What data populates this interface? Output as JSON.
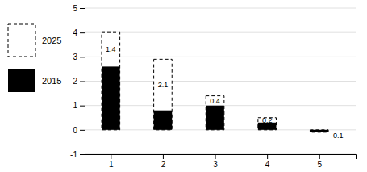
{
  "chart_data": {
    "type": "bar",
    "x": [
      1,
      2,
      3,
      4,
      5
    ],
    "series": [
      {
        "name": "2025",
        "color": "#000000",
        "line_style": "dashed",
        "values": [
          4.0,
          2.9,
          1.4,
          0.5,
          -0.1
        ]
      },
      {
        "name": "2015",
        "color": "#000000",
        "values": [
          2.6,
          0.8,
          1.0,
          0.3,
          -0.1
        ]
      }
    ],
    "annotations": [
      "1.4",
      "2.1",
      "0.4",
      "0.2",
      "-0.1"
    ],
    "xlim": [
      0.5,
      5.7
    ],
    "xticks": [
      1,
      2,
      3,
      4,
      5
    ],
    "ylim": [
      -1,
      5
    ],
    "yticks": [
      -1,
      0,
      1,
      2,
      3,
      4,
      5
    ],
    "grid": true
  }
}
